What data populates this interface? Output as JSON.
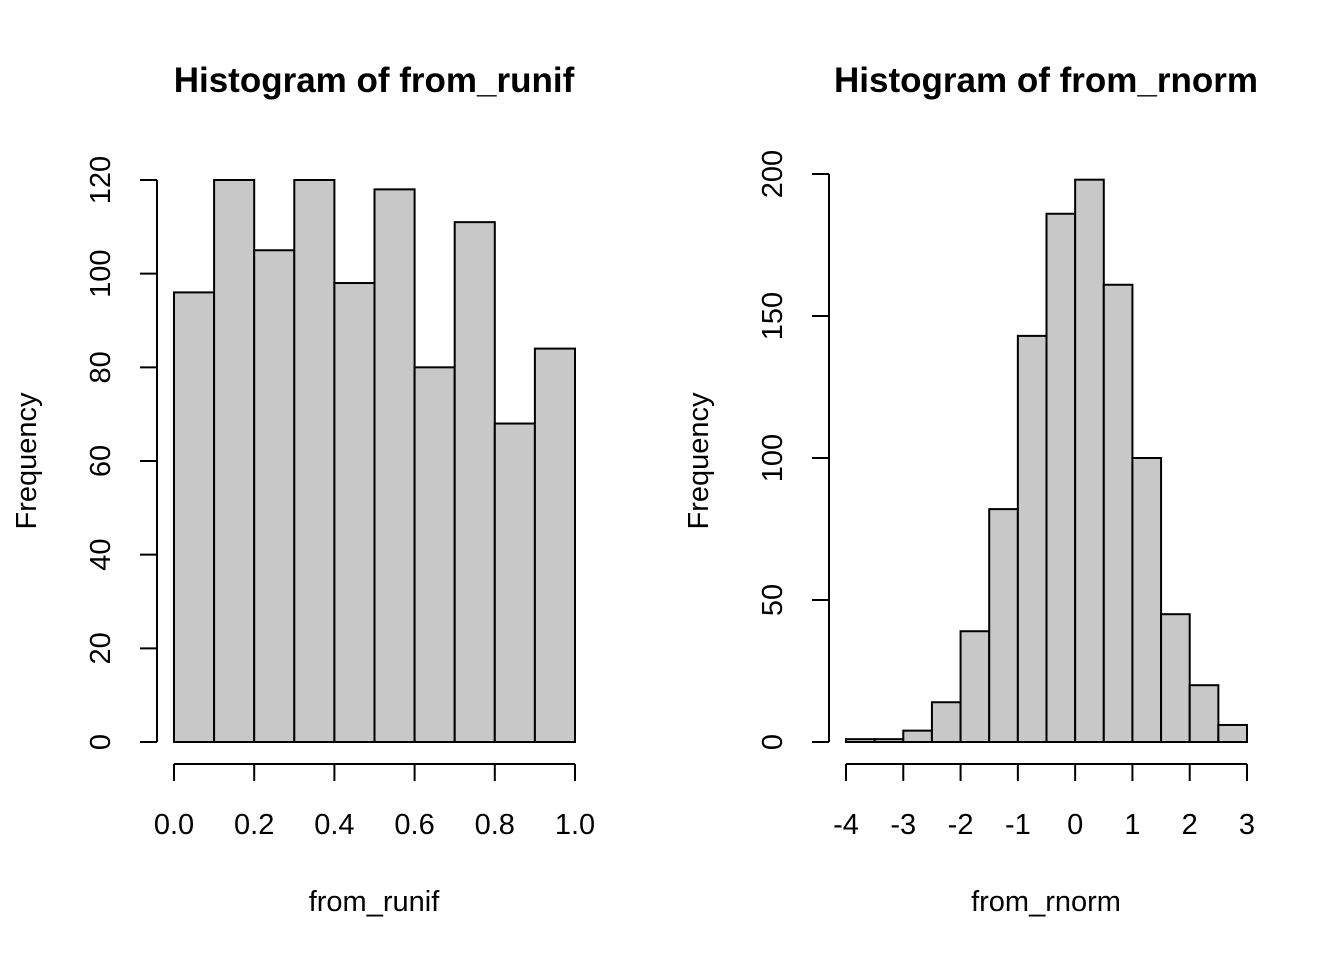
{
  "colors": {
    "bar_fill": "#c8c8c8",
    "bar_stroke": "#000000",
    "axis": "#000000",
    "background": "#ffffff"
  },
  "chart_data": [
    {
      "type": "bar",
      "title": "Histogram of from_runif",
      "xlabel": "from_runif",
      "ylabel": "Frequency",
      "bin_edges": [
        0.0,
        0.1,
        0.2,
        0.3,
        0.4,
        0.5,
        0.6,
        0.7,
        0.8,
        0.9,
        1.0
      ],
      "values": [
        96,
        120,
        105,
        120,
        98,
        118,
        80,
        111,
        68,
        84
      ],
      "xlim": [
        0.0,
        1.0
      ],
      "ylim": [
        0,
        120
      ],
      "x_ticks": [
        0.0,
        0.2,
        0.4,
        0.6,
        0.8,
        1.0
      ],
      "x_tick_labels": [
        "0.0",
        "0.2",
        "0.4",
        "0.6",
        "0.8",
        "1.0"
      ],
      "y_ticks": [
        0,
        20,
        40,
        60,
        80,
        100,
        120
      ],
      "y_tick_labels": [
        "0",
        "20",
        "40",
        "60",
        "80",
        "100",
        "120"
      ],
      "grid": false,
      "legend": "none"
    },
    {
      "type": "bar",
      "title": "Histogram of from_rnorm",
      "xlabel": "from_rnorm",
      "ylabel": "Frequency",
      "bin_edges": [
        -4.0,
        -3.5,
        -3.0,
        -2.5,
        -2.0,
        -1.5,
        -1.0,
        -0.5,
        0.0,
        0.5,
        1.0,
        1.5,
        2.0,
        2.5,
        3.0
      ],
      "values": [
        1,
        1,
        4,
        14,
        39,
        82,
        143,
        186,
        198,
        161,
        100,
        45,
        20,
        6
      ],
      "xlim": [
        -4,
        3
      ],
      "ylim": [
        0,
        200
      ],
      "x_ticks": [
        -4,
        -3,
        -2,
        -1,
        0,
        1,
        2,
        3
      ],
      "x_tick_labels": [
        "-4",
        "-3",
        "-2",
        "-1",
        "0",
        "1",
        "2",
        "3"
      ],
      "y_ticks": [
        0,
        50,
        100,
        150,
        200
      ],
      "y_tick_labels": [
        "0",
        "50",
        "100",
        "150",
        "200"
      ],
      "grid": false,
      "legend": "none"
    }
  ]
}
